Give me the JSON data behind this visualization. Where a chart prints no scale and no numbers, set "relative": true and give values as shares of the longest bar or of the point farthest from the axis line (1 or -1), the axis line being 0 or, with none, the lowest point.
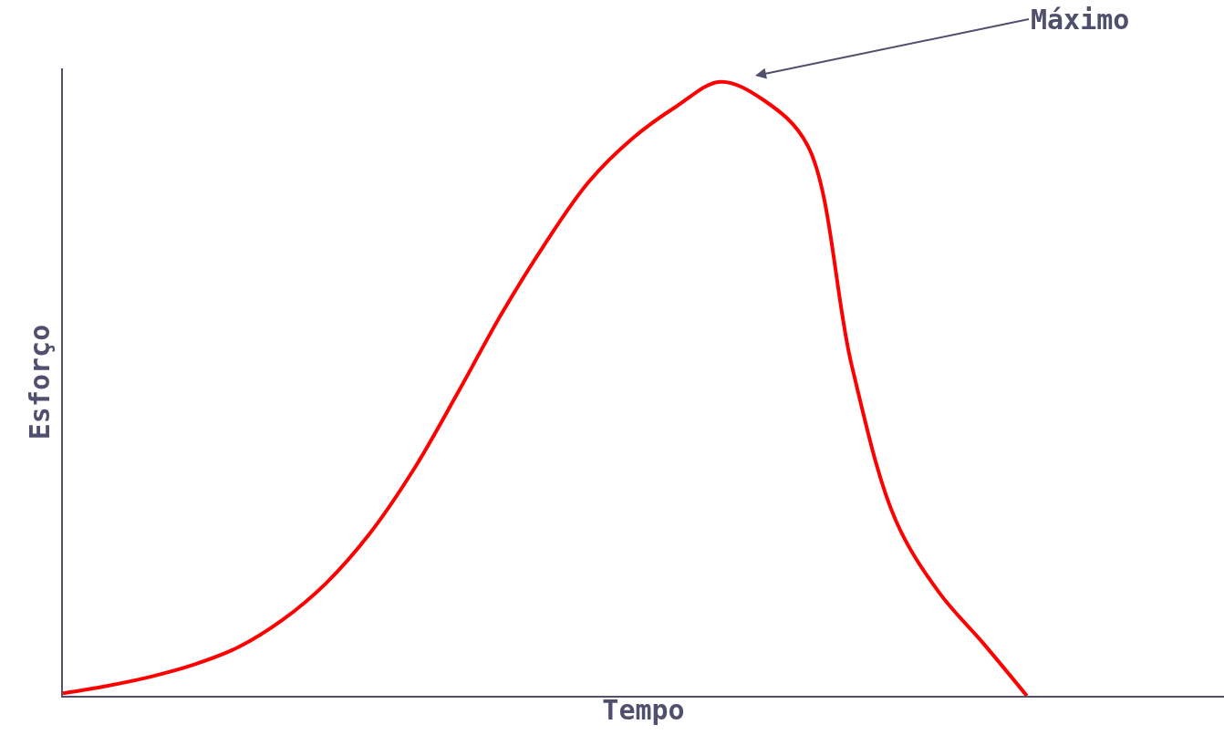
{
  "chart_data": {
    "type": "line",
    "relative": true,
    "xlabel": "Tempo",
    "ylabel": "Esforço",
    "categories": [
      null,
      null,
      null,
      null,
      null,
      null,
      null,
      null,
      null,
      null,
      null,
      null,
      null,
      null,
      null,
      null,
      null,
      null,
      null,
      null,
      null,
      null,
      null,
      null,
      null,
      null,
      null
    ],
    "series": [
      {
        "color": "#ff0000",
        "values": [
          0.004,
          0.016,
          0.031,
          0.051,
          0.079,
          0.123,
          0.183,
          0.264,
          0.368,
          0.492,
          0.621,
          0.736,
          0.837,
          0.908,
          0.96,
          1.0,
          0.97,
          0.896,
          0.539,
          0.287,
          0.168,
          0.086,
          0,
          null,
          null,
          null,
          null
        ]
      }
    ],
    "annotations": [
      "Máximo"
    ],
    "legend": false,
    "tick_labels": false,
    "marker": "none",
    "line_style": "solid"
  }
}
